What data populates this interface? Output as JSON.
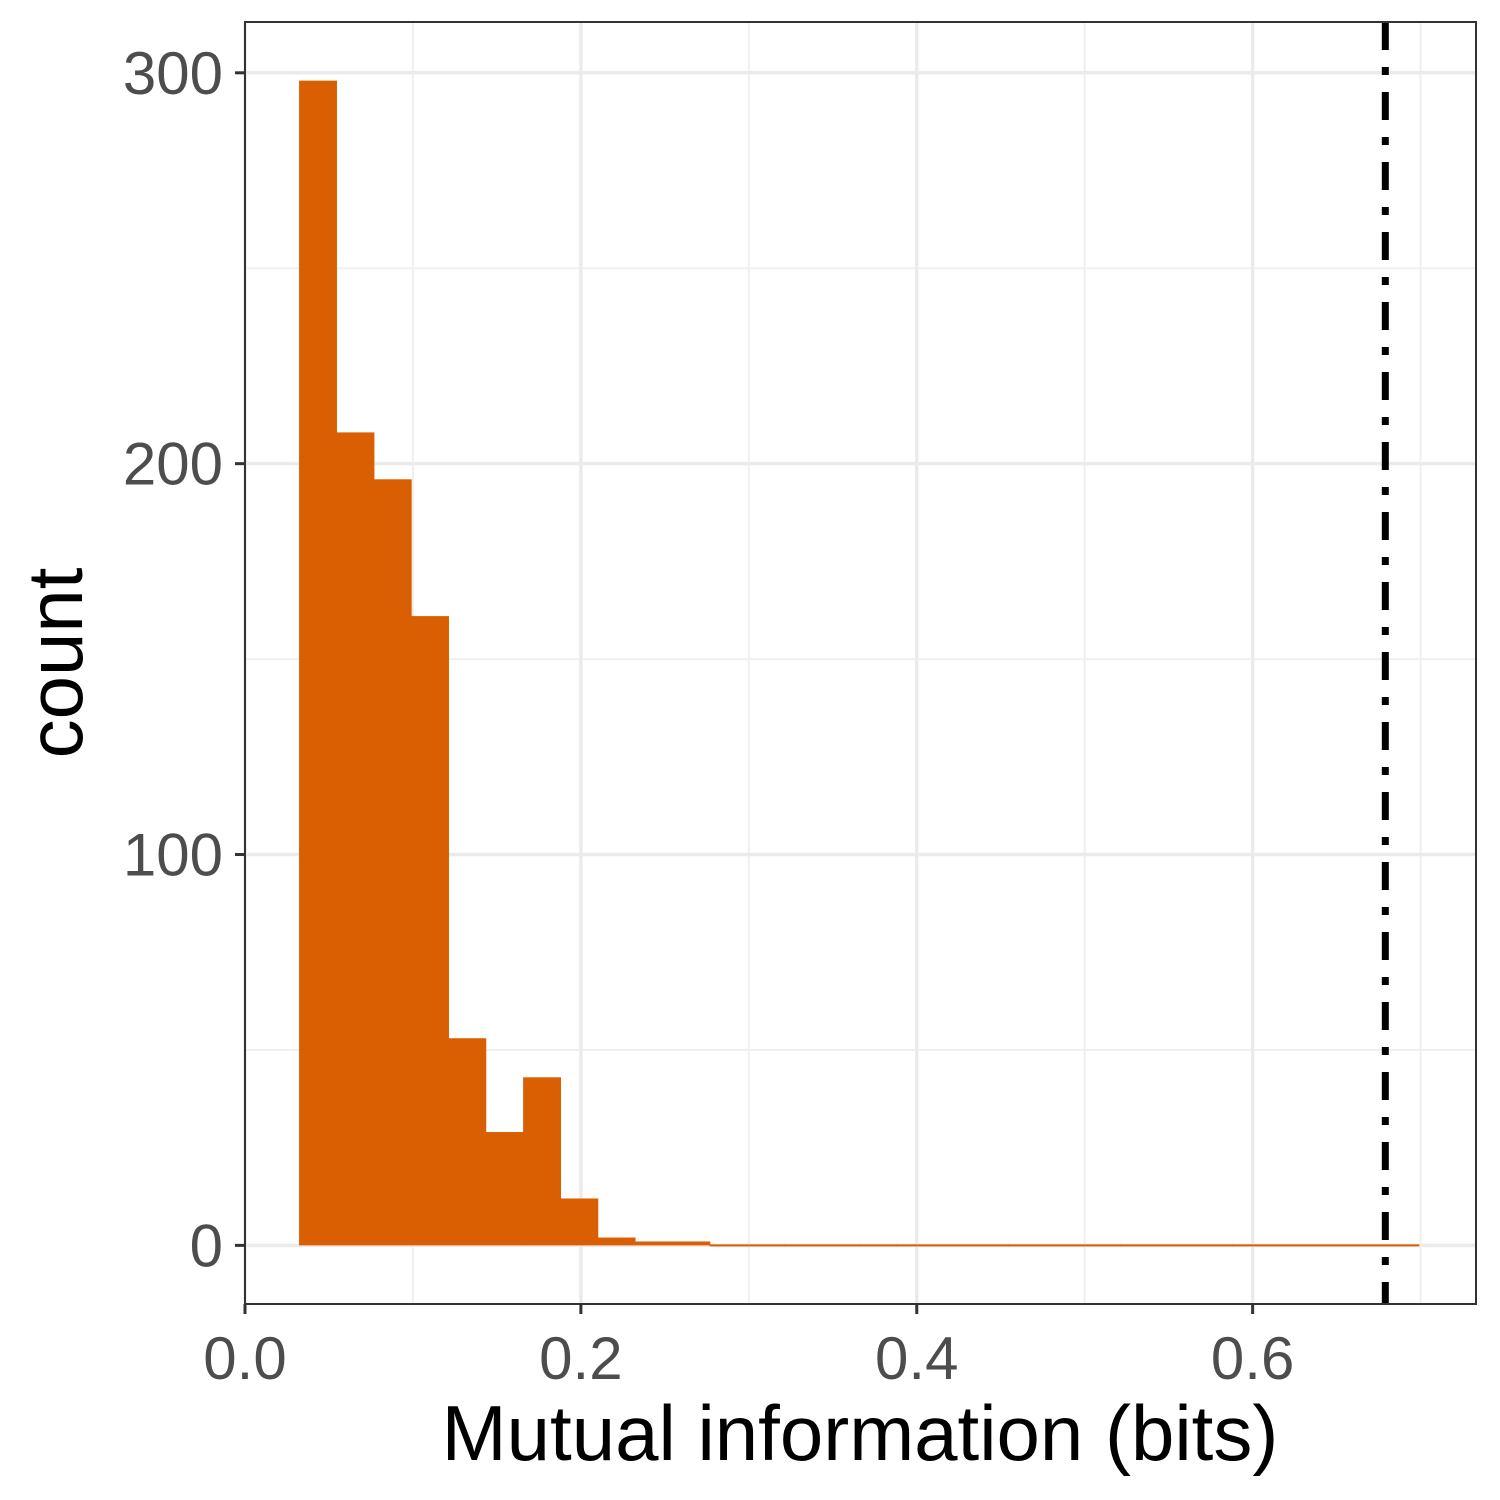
{
  "chart_data": {
    "type": "bar",
    "subtype": "histogram",
    "title": "",
    "xlabel": "Mutual information (bits)",
    "ylabel": "count",
    "xlim": [
      0.0,
      0.733
    ],
    "ylim": [
      -15,
      313
    ],
    "x_ticks": [
      0.0,
      0.2,
      0.4,
      0.6
    ],
    "x_tick_labels": [
      "0.0",
      "0.2",
      "0.4",
      "0.6"
    ],
    "y_ticks": [
      0,
      100,
      200,
      300
    ],
    "y_tick_labels": [
      "0",
      "100",
      "200",
      "300"
    ],
    "grid": true,
    "legend": "none",
    "bar_color": "#D95F02",
    "bins": [
      {
        "x0": 0.0322,
        "x1": 0.0544,
        "count": 298
      },
      {
        "x0": 0.0544,
        "x1": 0.0767,
        "count": 208
      },
      {
        "x0": 0.0767,
        "x1": 0.0989,
        "count": 196
      },
      {
        "x0": 0.0989,
        "x1": 0.1211,
        "count": 161
      },
      {
        "x0": 0.1211,
        "x1": 0.1433,
        "count": 53
      },
      {
        "x0": 0.1433,
        "x1": 0.1656,
        "count": 29
      },
      {
        "x0": 0.1656,
        "x1": 0.1878,
        "count": 43
      },
      {
        "x0": 0.1878,
        "x1": 0.21,
        "count": 12
      },
      {
        "x0": 0.21,
        "x1": 0.2322,
        "count": 2
      },
      {
        "x0": 0.2322,
        "x1": 0.2544,
        "count": 1
      },
      {
        "x0": 0.2544,
        "x1": 0.2767,
        "count": 1
      },
      {
        "x0": 0.2767,
        "x1": 0.2989,
        "count": 0
      },
      {
        "x0": 0.2989,
        "x1": 0.3211,
        "count": 0
      },
      {
        "x0": 0.3211,
        "x1": 0.3433,
        "count": 0
      },
      {
        "x0": 0.3433,
        "x1": 0.3656,
        "count": 0
      },
      {
        "x0": 0.3656,
        "x1": 0.3878,
        "count": 0
      },
      {
        "x0": 0.3878,
        "x1": 0.41,
        "count": 0
      },
      {
        "x0": 0.41,
        "x1": 0.4322,
        "count": 0
      },
      {
        "x0": 0.4322,
        "x1": 0.4544,
        "count": 0
      },
      {
        "x0": 0.4544,
        "x1": 0.4767,
        "count": 0
      },
      {
        "x0": 0.4767,
        "x1": 0.4989,
        "count": 0
      },
      {
        "x0": 0.4989,
        "x1": 0.5211,
        "count": 0
      },
      {
        "x0": 0.5211,
        "x1": 0.5433,
        "count": 0
      },
      {
        "x0": 0.5433,
        "x1": 0.5656,
        "count": 0
      },
      {
        "x0": 0.5656,
        "x1": 0.5878,
        "count": 0
      },
      {
        "x0": 0.5878,
        "x1": 0.61,
        "count": 0
      },
      {
        "x0": 0.61,
        "x1": 0.6322,
        "count": 0
      },
      {
        "x0": 0.6322,
        "x1": 0.6544,
        "count": 0
      },
      {
        "x0": 0.6544,
        "x1": 0.6767,
        "count": 0
      },
      {
        "x0": 0.6767,
        "x1": 0.6989,
        "count": 0
      }
    ],
    "reference_line": {
      "x": 0.679,
      "style": "dotdash",
      "color": "#000000"
    }
  }
}
